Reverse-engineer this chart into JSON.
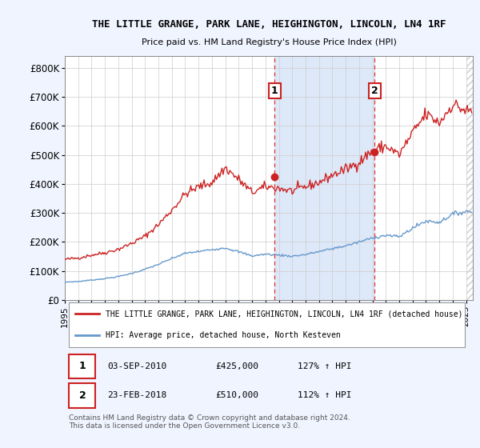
{
  "title": "THE LITTLE GRANGE, PARK LANE, HEIGHINGTON, LINCOLN, LN4 1RF",
  "subtitle": "Price paid vs. HM Land Registry's House Price Index (HPI)",
  "ylabel_ticks": [
    "£0",
    "£100K",
    "£200K",
    "£300K",
    "£400K",
    "£500K",
    "£600K",
    "£700K",
    "£800K"
  ],
  "ytick_values": [
    0,
    100000,
    200000,
    300000,
    400000,
    500000,
    600000,
    700000,
    800000
  ],
  "ylim": [
    0,
    840000
  ],
  "xlim_start": 1995.0,
  "xlim_end": 2025.5,
  "x_ticks": [
    1995,
    1996,
    1997,
    1998,
    1999,
    2000,
    2001,
    2002,
    2003,
    2004,
    2005,
    2006,
    2007,
    2008,
    2009,
    2010,
    2011,
    2012,
    2013,
    2014,
    2015,
    2016,
    2017,
    2018,
    2019,
    2020,
    2021,
    2022,
    2023,
    2024,
    2025
  ],
  "sale1_x": 2010.67,
  "sale1_y": 425000,
  "sale1_label": "1",
  "sale2_x": 2018.15,
  "sale2_y": 510000,
  "sale2_label": "2",
  "legend_line1": "THE LITTLE GRANGE, PARK LANE, HEIGHINGTON, LINCOLN, LN4 1RF (detached house)",
  "legend_line2": "HPI: Average price, detached house, North Kesteven",
  "footer": "Contains HM Land Registry data © Crown copyright and database right 2024.\nThis data is licensed under the Open Government Licence v3.0.",
  "red_color": "#cc2222",
  "blue_color": "#6699cc",
  "background_color": "#f0f4ff",
  "plot_bg_color": "#ffffff",
  "shade_color": "#dde8f8",
  "dashed_color": "#dd3333",
  "grid_color": "#cccccc",
  "hatch_color": "#cccccc"
}
